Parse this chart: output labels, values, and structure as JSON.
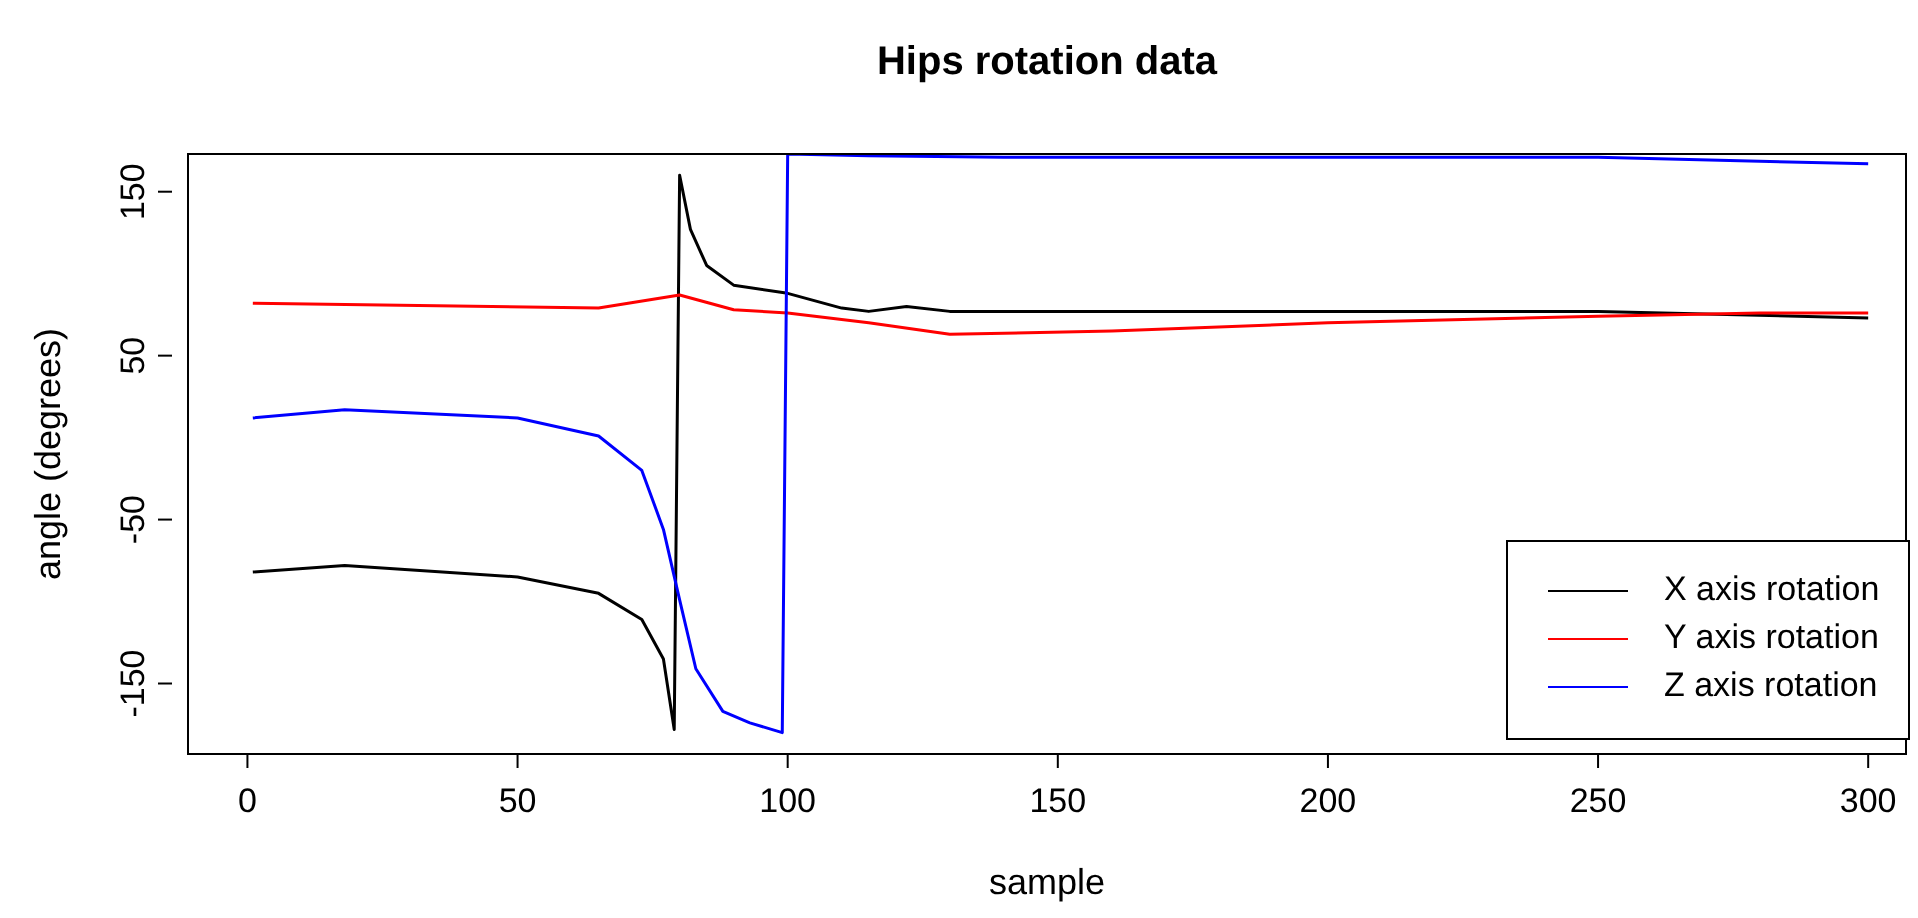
{
  "chart_data": {
    "type": "line",
    "title": "Hips rotation data",
    "xlabel": "sample",
    "ylabel": "angle (degrees)",
    "xlim": [
      -11,
      307
    ],
    "ylim": [
      -193,
      173
    ],
    "xticks": [
      0,
      50,
      100,
      150,
      200,
      250,
      300
    ],
    "yticks": [
      -150,
      -50,
      50,
      150
    ],
    "grid": false,
    "legend": "bottom right",
    "marker": "none",
    "line_style": "solid",
    "series": [
      {
        "name": "X axis rotation",
        "color": "#000000",
        "x": [
          1,
          18,
          50,
          65,
          73,
          77,
          79,
          80,
          82,
          85,
          90,
          100,
          110,
          115,
          122,
          130,
          150,
          200,
          250,
          300
        ],
        "values": [
          -82,
          -78,
          -85,
          -95,
          -111,
          -135,
          -178,
          160,
          127,
          105,
          93,
          88,
          79,
          77,
          80,
          77,
          77,
          77,
          77,
          73
        ]
      },
      {
        "name": "Y axis rotation",
        "color": "#ff0000",
        "x": [
          1,
          65,
          80,
          90,
          100,
          115,
          130,
          160,
          200,
          250,
          280,
          300
        ],
        "values": [
          82,
          79,
          87,
          78,
          76,
          70,
          63,
          65,
          70,
          74,
          76,
          76
        ]
      },
      {
        "name": "Z axis rotation",
        "color": "#0000ff",
        "x": [
          1,
          18,
          50,
          65,
          73,
          77,
          80,
          83,
          88,
          93,
          99,
          100,
          115,
          140,
          200,
          250,
          300
        ],
        "values": [
          12,
          17,
          12,
          1,
          -20,
          -56,
          -99,
          -141,
          -167,
          -174,
          -180,
          173,
          172,
          171,
          171,
          171,
          167
        ]
      }
    ]
  }
}
